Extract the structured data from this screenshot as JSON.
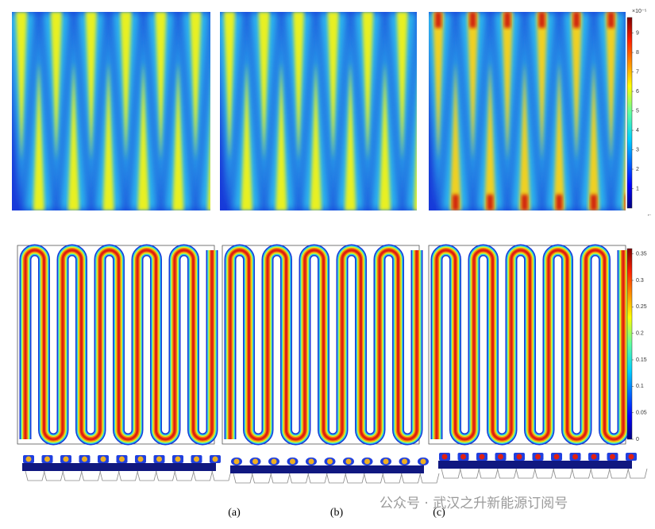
{
  "figure": {
    "colorbars": [
      {
        "label": "×10⁻⁵",
        "lim": [
          0,
          9.8
        ],
        "ticks": [
          1,
          2,
          3,
          4,
          5,
          6,
          7,
          8,
          9
        ]
      },
      {
        "lim": [
          0,
          0.36
        ],
        "ticks": [
          0,
          0.05,
          0.1,
          0.15,
          0.2,
          0.25,
          0.3,
          0.35
        ]
      }
    ],
    "panel_labels": [
      "(a)",
      "(b)",
      "(c)"
    ],
    "watermark": "公众号 · 武汉之升新能源订阅号"
  }
}
